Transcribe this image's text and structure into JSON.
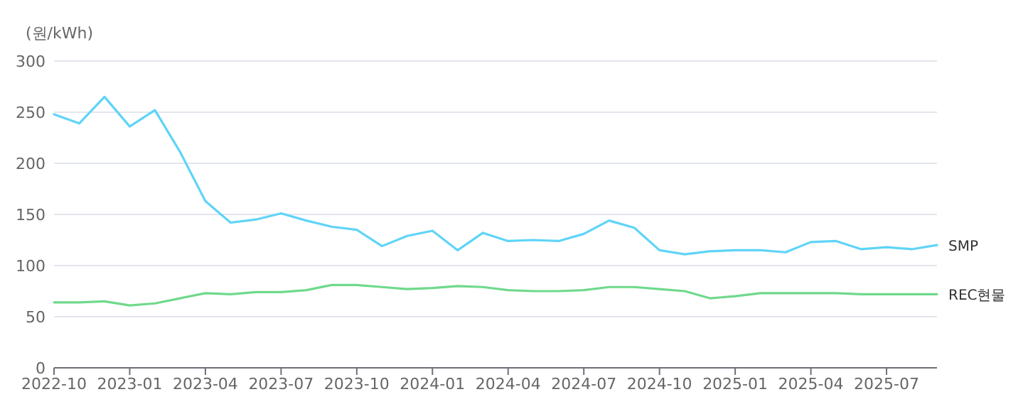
{
  "chart_data": {
    "type": "line",
    "ylabel": "(원/kWh)",
    "x": [
      "2022-10",
      "2022-11",
      "2022-12",
      "2023-01",
      "2023-02",
      "2023-03",
      "2023-04",
      "2023-05",
      "2023-06",
      "2023-07",
      "2023-08",
      "2023-09",
      "2023-10",
      "2023-11",
      "2023-12",
      "2024-01",
      "2024-02",
      "2024-03",
      "2024-04",
      "2024-05",
      "2024-06",
      "2024-07",
      "2024-08",
      "2024-09",
      "2024-10",
      "2024-11",
      "2024-12",
      "2025-01",
      "2025-02",
      "2025-03",
      "2025-04",
      "2025-05",
      "2025-06",
      "2025-07",
      "2025-08",
      "2025-09"
    ],
    "series": [
      {
        "name": "SMP",
        "color": "#5fd4f8",
        "values": [
          248,
          239,
          265,
          236,
          252,
          211,
          163,
          142,
          145,
          151,
          144,
          138,
          135,
          119,
          129,
          134,
          115,
          132,
          124,
          125,
          124,
          131,
          144,
          137,
          115,
          111,
          114,
          115,
          115,
          113,
          123,
          124,
          116,
          118,
          116,
          120
        ]
      },
      {
        "name": "REC현물",
        "color": "#6fd98c",
        "values": [
          64,
          64,
          65,
          61,
          63,
          68,
          73,
          72,
          74,
          74,
          76,
          81,
          81,
          79,
          77,
          78,
          80,
          79,
          76,
          75,
          75,
          76,
          79,
          79,
          77,
          75,
          68,
          70,
          73,
          73,
          73,
          73,
          72,
          72,
          72,
          72
        ]
      }
    ],
    "xlim": [
      "2022-10",
      "2025-09"
    ],
    "xticks": [
      "2022-10",
      "2023-01",
      "2023-04",
      "2023-07",
      "2023-10",
      "2024-01",
      "2024-04",
      "2024-07",
      "2024-10",
      "2025-01",
      "2025-04",
      "2025-07"
    ],
    "ylim": [
      0,
      300
    ],
    "yticks": [
      0,
      50,
      100,
      150,
      200,
      250,
      300
    ],
    "grid": "y",
    "legend": "right",
    "marker": "none",
    "line_style": "solid"
  }
}
